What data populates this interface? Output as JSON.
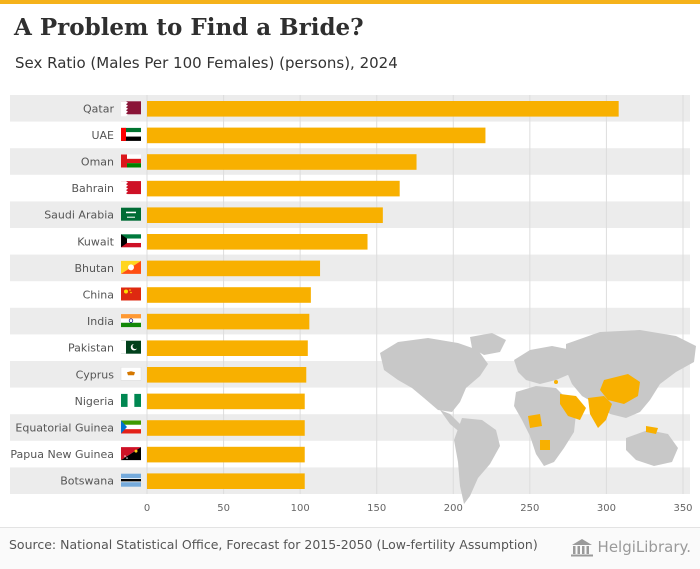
{
  "header": {
    "title": "A Problem to Find a Bride?",
    "subtitle": "Sex Ratio (Males Per 100 Females) (persons), 2024"
  },
  "colors": {
    "bar": "#f8b000",
    "band": "#ececec",
    "grid": "#dddddd",
    "accent": "#f5b21a",
    "map_land": "#c8c8c8",
    "map_highlight": "#f8b000"
  },
  "chart_data": {
    "type": "bar",
    "orientation": "horizontal",
    "title": "A Problem to Find a Bride?",
    "subtitle": "Sex Ratio (Males Per 100 Females) (persons), 2024",
    "xlabel": "",
    "ylabel": "",
    "xlim": [
      0,
      350
    ],
    "xticks": [
      0,
      50,
      100,
      150,
      200,
      250,
      300,
      350
    ],
    "grid": true,
    "categories": [
      "Qatar",
      "UAE",
      "Oman",
      "Bahrain",
      "Saudi Arabia",
      "Kuwait",
      "Bhutan",
      "China",
      "India",
      "Pakistan",
      "Cyprus",
      "Nigeria",
      "Equatorial Guinea",
      "Papua New Guinea",
      "Botswana"
    ],
    "values": [
      308,
      221,
      176,
      165,
      154,
      144,
      113,
      107,
      106,
      105,
      104,
      103,
      103,
      103,
      103
    ],
    "flag_icons": [
      "qatar-flag-icon",
      "uae-flag-icon",
      "oman-flag-icon",
      "bahrain-flag-icon",
      "saudi-arabia-flag-icon",
      "kuwait-flag-icon",
      "bhutan-flag-icon",
      "china-flag-icon",
      "india-flag-icon",
      "pakistan-flag-icon",
      "cyprus-flag-icon",
      "nigeria-flag-icon",
      "equatorial-guinea-flag-icon",
      "papua-new-guinea-flag-icon",
      "botswana-flag-icon"
    ]
  },
  "footer": {
    "source": "Source: National Statistical Office, Forecast for 2015-2050 (Low-fertility Assumption)",
    "brand_icon": "library-building-icon",
    "brand_name": "HelgiLibrary."
  }
}
